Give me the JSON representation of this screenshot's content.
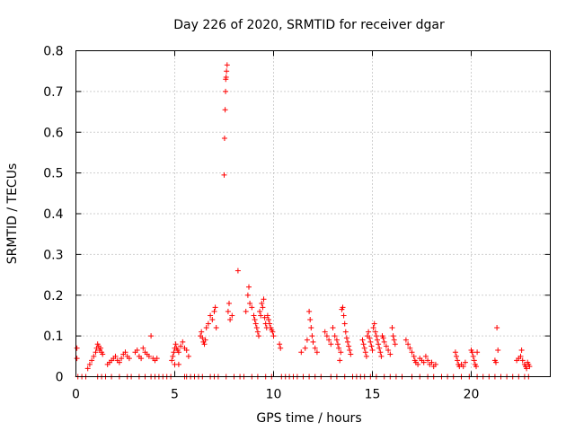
{
  "chart_data": {
    "type": "scatter",
    "title": "Day 226 of 2020, SRMTID for receiver dgar",
    "xlabel": "GPS time / hours",
    "ylabel": "SRMTID / TECUs",
    "xlim": [
      0,
      24
    ],
    "ylim": [
      0,
      0.8
    ],
    "grid": true,
    "marker_color": "#ff0000",
    "x_ticks": [
      {
        "value": 0,
        "label": "0"
      },
      {
        "value": 5,
        "label": "5"
      },
      {
        "value": 10,
        "label": "10"
      },
      {
        "value": 15,
        "label": "15"
      },
      {
        "value": 20,
        "label": "20"
      }
    ],
    "y_ticks": [
      {
        "value": 0,
        "label": "0"
      },
      {
        "value": 0.1,
        "label": "0.1"
      },
      {
        "value": 0.2,
        "label": "0.2"
      },
      {
        "value": 0.3,
        "label": "0.3"
      },
      {
        "value": 0.4,
        "label": "0.4"
      },
      {
        "value": 0.5,
        "label": "0.5"
      },
      {
        "value": 0.6,
        "label": "0.6"
      },
      {
        "value": 0.7,
        "label": "0.7"
      },
      {
        "value": 0.8,
        "label": "0.8"
      }
    ],
    "series": [
      {
        "name": "SRMTID",
        "points": [
          [
            0.05,
            0.07
          ],
          [
            0.05,
            0.045
          ],
          [
            0.1,
            0.0
          ],
          [
            0.3,
            0.0
          ],
          [
            0.5,
            0.0
          ],
          [
            0.6,
            0.02
          ],
          [
            0.7,
            0.03
          ],
          [
            0.8,
            0.04
          ],
          [
            0.9,
            0.05
          ],
          [
            1.0,
            0.06
          ],
          [
            1.05,
            0.07
          ],
          [
            1.1,
            0.08
          ],
          [
            1.15,
            0.075
          ],
          [
            1.2,
            0.065
          ],
          [
            1.25,
            0.07
          ],
          [
            1.3,
            0.06
          ],
          [
            1.35,
            0.055
          ],
          [
            1.1,
            0.0
          ],
          [
            1.3,
            0.0
          ],
          [
            1.5,
            0.0
          ],
          [
            1.6,
            0.03
          ],
          [
            1.7,
            0.035
          ],
          [
            1.8,
            0.04
          ],
          [
            1.9,
            0.045
          ],
          [
            2.0,
            0.05
          ],
          [
            2.1,
            0.04
          ],
          [
            2.2,
            0.035
          ],
          [
            2.3,
            0.045
          ],
          [
            2.4,
            0.055
          ],
          [
            2.5,
            0.06
          ],
          [
            2.6,
            0.05
          ],
          [
            2.7,
            0.045
          ],
          [
            1.8,
            0.0
          ],
          [
            2.2,
            0.0
          ],
          [
            2.6,
            0.0
          ],
          [
            2.8,
            0.0
          ],
          [
            3.0,
            0.06
          ],
          [
            3.1,
            0.065
          ],
          [
            3.2,
            0.05
          ],
          [
            3.3,
            0.045
          ],
          [
            3.4,
            0.07
          ],
          [
            3.5,
            0.06
          ],
          [
            3.6,
            0.055
          ],
          [
            3.7,
            0.05
          ],
          [
            3.8,
            0.1
          ],
          [
            3.9,
            0.045
          ],
          [
            4.0,
            0.04
          ],
          [
            4.1,
            0.045
          ],
          [
            3.2,
            0.0
          ],
          [
            3.5,
            0.0
          ],
          [
            3.8,
            0.0
          ],
          [
            4.0,
            0.0
          ],
          [
            4.2,
            0.0
          ],
          [
            4.4,
            0.0
          ],
          [
            4.6,
            0.0
          ],
          [
            4.8,
            0.0
          ],
          [
            4.85,
            0.04
          ],
          [
            4.9,
            0.05
          ],
          [
            4.95,
            0.06
          ],
          [
            5.0,
            0.07
          ],
          [
            5.05,
            0.08
          ],
          [
            5.1,
            0.07
          ],
          [
            5.15,
            0.065
          ],
          [
            5.2,
            0.06
          ],
          [
            5.3,
            0.075
          ],
          [
            5.4,
            0.085
          ],
          [
            5.5,
            0.07
          ],
          [
            5.6,
            0.065
          ],
          [
            5.7,
            0.05
          ],
          [
            5.8,
            0.0
          ],
          [
            5.0,
            0.03
          ],
          [
            5.2,
            0.03
          ],
          [
            5.5,
            0.0
          ],
          [
            5.6,
            0.0
          ],
          [
            6.0,
            0.0
          ],
          [
            6.2,
            0.0
          ],
          [
            6.3,
            0.1
          ],
          [
            6.35,
            0.11
          ],
          [
            6.4,
            0.095
          ],
          [
            6.45,
            0.085
          ],
          [
            6.5,
            0.08
          ],
          [
            6.55,
            0.09
          ],
          [
            6.6,
            0.12
          ],
          [
            6.7,
            0.13
          ],
          [
            6.8,
            0.15
          ],
          [
            6.9,
            0.14
          ],
          [
            7.0,
            0.16
          ],
          [
            7.05,
            0.17
          ],
          [
            7.1,
            0.12
          ],
          [
            6.4,
            0.0
          ],
          [
            6.8,
            0.0
          ],
          [
            7.0,
            0.0
          ],
          [
            7.2,
            0.0
          ],
          [
            7.5,
            0.495
          ],
          [
            7.52,
            0.585
          ],
          [
            7.55,
            0.655
          ],
          [
            7.57,
            0.7
          ],
          [
            7.58,
            0.73
          ],
          [
            7.6,
            0.735
          ],
          [
            7.62,
            0.75
          ],
          [
            7.65,
            0.765
          ],
          [
            7.6,
            0.0
          ],
          [
            7.75,
            0.18
          ],
          [
            7.7,
            0.16
          ],
          [
            7.8,
            0.14
          ],
          [
            7.9,
            0.15
          ],
          [
            8.0,
            0.0
          ],
          [
            8.2,
            0.26
          ],
          [
            8.3,
            0.0
          ],
          [
            8.5,
            0.0
          ],
          [
            8.6,
            0.16
          ],
          [
            8.7,
            0.2
          ],
          [
            8.75,
            0.22
          ],
          [
            8.8,
            0.18
          ],
          [
            8.9,
            0.17
          ],
          [
            9.0,
            0.15
          ],
          [
            9.05,
            0.14
          ],
          [
            9.1,
            0.13
          ],
          [
            9.15,
            0.12
          ],
          [
            9.2,
            0.11
          ],
          [
            9.25,
            0.1
          ],
          [
            9.3,
            0.16
          ],
          [
            9.35,
            0.15
          ],
          [
            9.4,
            0.18
          ],
          [
            9.45,
            0.17
          ],
          [
            9.5,
            0.19
          ],
          [
            9.55,
            0.145
          ],
          [
            9.6,
            0.13
          ],
          [
            9.65,
            0.12
          ],
          [
            9.7,
            0.15
          ],
          [
            9.75,
            0.14
          ],
          [
            9.8,
            0.13
          ],
          [
            9.85,
            0.12
          ],
          [
            9.9,
            0.115
          ],
          [
            9.95,
            0.11
          ],
          [
            10.0,
            0.1
          ],
          [
            8.9,
            0.0
          ],
          [
            9.2,
            0.0
          ],
          [
            9.6,
            0.0
          ],
          [
            9.9,
            0.0
          ],
          [
            10.3,
            0.08
          ],
          [
            10.35,
            0.07
          ],
          [
            10.4,
            0.0
          ],
          [
            10.6,
            0.0
          ],
          [
            10.8,
            0.0
          ],
          [
            11.0,
            0.0
          ],
          [
            11.2,
            0.0
          ],
          [
            11.4,
            0.06
          ],
          [
            11.6,
            0.07
          ],
          [
            11.7,
            0.09
          ],
          [
            11.8,
            0.16
          ],
          [
            11.85,
            0.14
          ],
          [
            11.9,
            0.12
          ],
          [
            11.95,
            0.1
          ],
          [
            12.0,
            0.085
          ],
          [
            12.1,
            0.07
          ],
          [
            12.2,
            0.06
          ],
          [
            11.5,
            0.0
          ],
          [
            11.8,
            0.0
          ],
          [
            12.1,
            0.0
          ],
          [
            12.4,
            0.0
          ],
          [
            12.6,
            0.11
          ],
          [
            12.7,
            0.1
          ],
          [
            12.8,
            0.09
          ],
          [
            12.9,
            0.08
          ],
          [
            13.0,
            0.12
          ],
          [
            13.1,
            0.1
          ],
          [
            13.2,
            0.09
          ],
          [
            13.25,
            0.08
          ],
          [
            13.3,
            0.07
          ],
          [
            13.35,
            0.04
          ],
          [
            13.4,
            0.06
          ],
          [
            13.45,
            0.165
          ],
          [
            13.5,
            0.17
          ],
          [
            13.55,
            0.15
          ],
          [
            13.6,
            0.13
          ],
          [
            13.65,
            0.11
          ],
          [
            13.7,
            0.095
          ],
          [
            13.75,
            0.085
          ],
          [
            13.8,
            0.075
          ],
          [
            13.85,
            0.065
          ],
          [
            13.9,
            0.055
          ],
          [
            12.9,
            0.0
          ],
          [
            13.2,
            0.0
          ],
          [
            13.6,
            0.0
          ],
          [
            14.0,
            0.0
          ],
          [
            14.2,
            0.0
          ],
          [
            14.4,
            0.0
          ],
          [
            14.5,
            0.09
          ],
          [
            14.55,
            0.08
          ],
          [
            14.6,
            0.07
          ],
          [
            14.65,
            0.06
          ],
          [
            14.7,
            0.05
          ],
          [
            14.75,
            0.1
          ],
          [
            14.8,
            0.11
          ],
          [
            14.85,
            0.095
          ],
          [
            14.9,
            0.085
          ],
          [
            14.95,
            0.075
          ],
          [
            15.0,
            0.065
          ],
          [
            15.05,
            0.12
          ],
          [
            15.1,
            0.13
          ],
          [
            15.15,
            0.11
          ],
          [
            15.2,
            0.1
          ],
          [
            15.25,
            0.09
          ],
          [
            15.3,
            0.08
          ],
          [
            15.35,
            0.07
          ],
          [
            15.4,
            0.06
          ],
          [
            15.45,
            0.05
          ],
          [
            15.5,
            0.1
          ],
          [
            15.55,
            0.095
          ],
          [
            15.6,
            0.085
          ],
          [
            15.7,
            0.075
          ],
          [
            15.8,
            0.065
          ],
          [
            15.9,
            0.055
          ],
          [
            16.0,
            0.12
          ],
          [
            16.05,
            0.1
          ],
          [
            16.1,
            0.09
          ],
          [
            16.15,
            0.08
          ],
          [
            14.6,
            0.0
          ],
          [
            14.9,
            0.0
          ],
          [
            15.2,
            0.0
          ],
          [
            15.6,
            0.0
          ],
          [
            15.9,
            0.0
          ],
          [
            16.2,
            0.0
          ],
          [
            16.5,
            0.0
          ],
          [
            16.7,
            0.09
          ],
          [
            16.8,
            0.08
          ],
          [
            16.9,
            0.07
          ],
          [
            17.0,
            0.06
          ],
          [
            17.1,
            0.05
          ],
          [
            17.15,
            0.04
          ],
          [
            17.2,
            0.035
          ],
          [
            17.3,
            0.03
          ],
          [
            17.4,
            0.045
          ],
          [
            17.5,
            0.04
          ],
          [
            17.6,
            0.035
          ],
          [
            17.7,
            0.05
          ],
          [
            17.8,
            0.04
          ],
          [
            17.9,
            0.03
          ],
          [
            18.0,
            0.035
          ],
          [
            18.1,
            0.025
          ],
          [
            18.2,
            0.03
          ],
          [
            17.0,
            0.0
          ],
          [
            17.4,
            0.0
          ],
          [
            17.8,
            0.0
          ],
          [
            18.1,
            0.0
          ],
          [
            18.5,
            0.0
          ],
          [
            18.8,
            0.0
          ],
          [
            19.1,
            0.0
          ],
          [
            19.2,
            0.06
          ],
          [
            19.25,
            0.05
          ],
          [
            19.3,
            0.04
          ],
          [
            19.35,
            0.03
          ],
          [
            19.4,
            0.025
          ],
          [
            19.5,
            0.03
          ],
          [
            19.6,
            0.025
          ],
          [
            19.7,
            0.035
          ],
          [
            20.0,
            0.065
          ],
          [
            20.05,
            0.06
          ],
          [
            20.1,
            0.05
          ],
          [
            20.15,
            0.04
          ],
          [
            20.2,
            0.03
          ],
          [
            20.25,
            0.025
          ],
          [
            20.3,
            0.06
          ],
          [
            19.5,
            0.0
          ],
          [
            19.9,
            0.0
          ],
          [
            20.3,
            0.0
          ],
          [
            20.6,
            0.0
          ],
          [
            20.9,
            0.0
          ],
          [
            21.2,
            0.04
          ],
          [
            21.25,
            0.035
          ],
          [
            21.3,
            0.12
          ],
          [
            21.35,
            0.065
          ],
          [
            21.2,
            0.0
          ],
          [
            21.5,
            0.0
          ],
          [
            21.8,
            0.0
          ],
          [
            22.1,
            0.0
          ],
          [
            22.3,
            0.04
          ],
          [
            22.4,
            0.045
          ],
          [
            22.5,
            0.05
          ],
          [
            22.55,
            0.065
          ],
          [
            22.6,
            0.04
          ],
          [
            22.7,
            0.03
          ],
          [
            22.75,
            0.025
          ],
          [
            22.8,
            0.02
          ],
          [
            22.85,
            0.035
          ],
          [
            22.9,
            0.03
          ],
          [
            22.95,
            0.025
          ],
          [
            22.4,
            0.0
          ],
          [
            22.7,
            0.0
          ],
          [
            22.9,
            0.0
          ]
        ]
      }
    ]
  }
}
